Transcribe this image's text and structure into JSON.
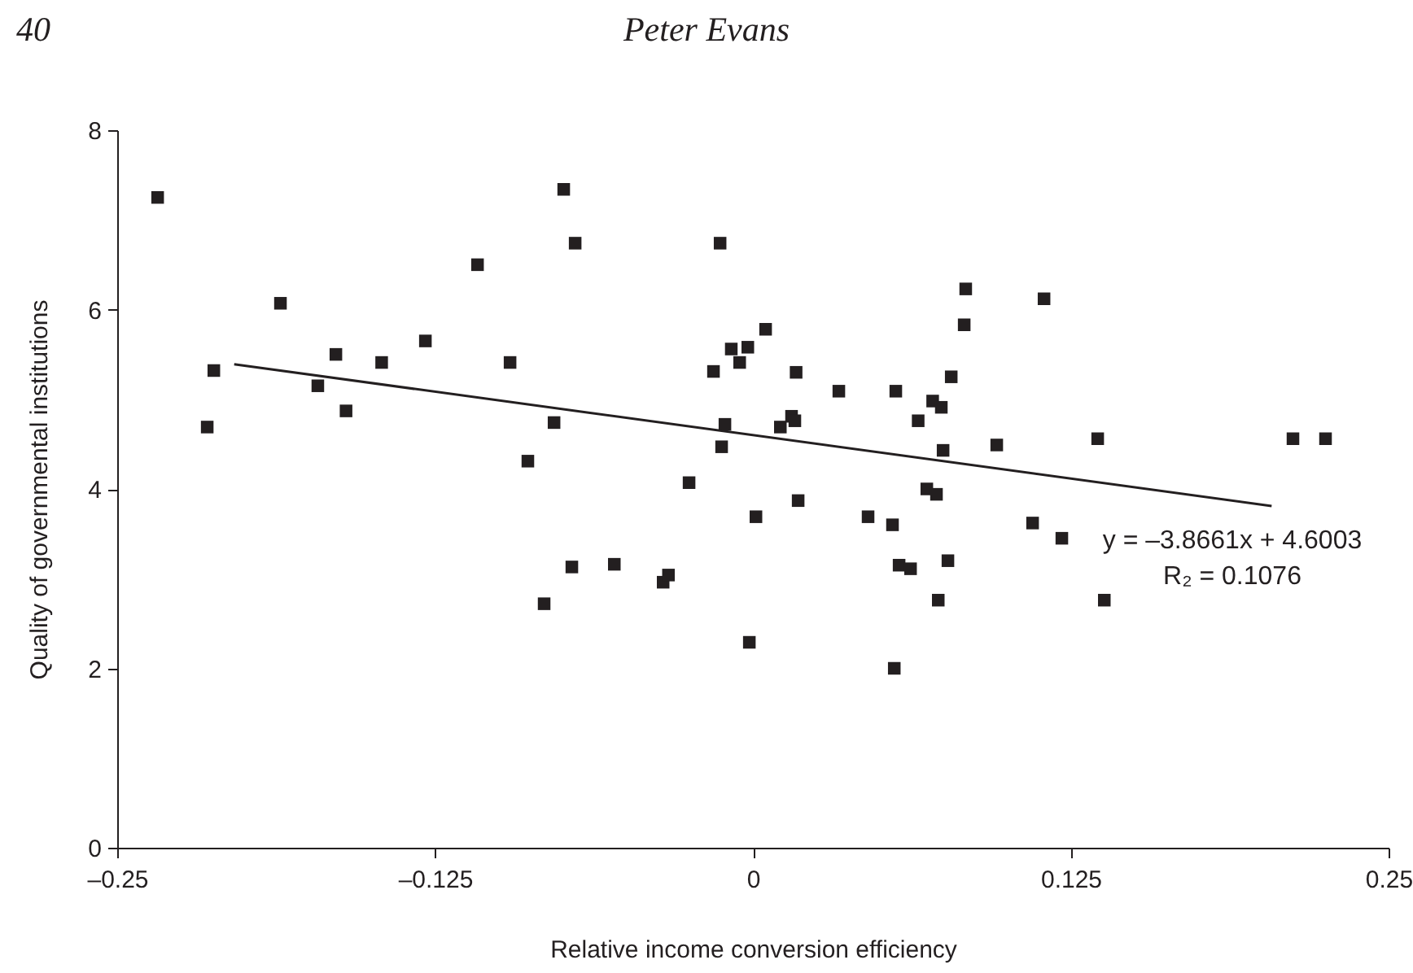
{
  "chart_data": {
    "type": "scatter",
    "xlabel": "Relative income conversion efficiency",
    "ylabel": "Quality of governmental institutions",
    "xlim": [
      -0.25,
      0.25
    ],
    "ylim": [
      0,
      8
    ],
    "xticks": [
      {
        "value": -0.25,
        "label": "–0.25"
      },
      {
        "value": -0.125,
        "label": "–0.125"
      },
      0,
      0.125,
      0.25
    ],
    "yticks": [
      0,
      2,
      4,
      6,
      8
    ],
    "grid": false,
    "annotations": [
      "40",
      "Peter Evans",
      "y = –3.8661x + 4.6003",
      "R₂ = 0.1076"
    ],
    "series": [
      {
        "marker": "square",
        "color": "#231f20",
        "x": [
          -0.2341,
          -0.212,
          -0.2146,
          -0.1858,
          -0.1711,
          -0.164,
          -0.16,
          -0.146,
          -0.1288,
          -0.1083,
          -0.0955,
          -0.0885,
          -0.0782,
          -0.0821,
          -0.0744,
          -0.0699,
          -0.0712,
          -0.0545,
          -0.0353,
          -0.0332,
          -0.0251,
          -0.0129,
          -0.0155,
          -0.011,
          -0.0123,
          -0.0085,
          -0.0052,
          -0.002,
          0.0012,
          -0.0014,
          0.005,
          0.017,
          0.0152,
          0.0165,
          0.0108,
          0.0178,
          0.0338,
          0.0562,
          0.0453,
          0.0549,
          0.0575,
          0.062,
          0.0556,
          0.065,
          0.0707,
          0.0741,
          0.078,
          0.0837,
          0.0831,
          0.0748,
          0.0684,
          0.0722,
          0.0767,
          0.0729,
          0.0959,
          0.1145,
          0.11,
          0.1215,
          0.1356,
          0.1382,
          0.2124,
          0.2252
        ],
        "values": [
          7.25,
          5.32,
          4.69,
          6.07,
          5.15,
          5.5,
          4.87,
          5.41,
          5.65,
          6.5,
          5.41,
          4.31,
          4.74,
          2.72,
          7.34,
          6.74,
          3.13,
          3.16,
          2.96,
          3.04,
          4.07,
          6.74,
          5.31,
          4.72,
          4.47,
          5.56,
          5.41,
          5.58,
          3.69,
          2.29,
          5.78,
          5.3,
          4.81,
          4.76,
          4.69,
          3.87,
          5.09,
          5.09,
          3.69,
          3.6,
          3.15,
          3.11,
          2.0,
          4.76,
          4.98,
          4.91,
          5.25,
          6.23,
          5.83,
          4.43,
          4.0,
          3.94,
          3.2,
          2.76,
          4.49,
          6.12,
          3.62,
          3.45,
          4.56,
          2.76,
          4.56,
          4.56
        ]
      },
      {
        "type": "line",
        "color": "#231f20",
        "x": [
          -0.204,
          0.204
        ],
        "values": [
          5.39,
          3.81
        ]
      }
    ]
  }
}
